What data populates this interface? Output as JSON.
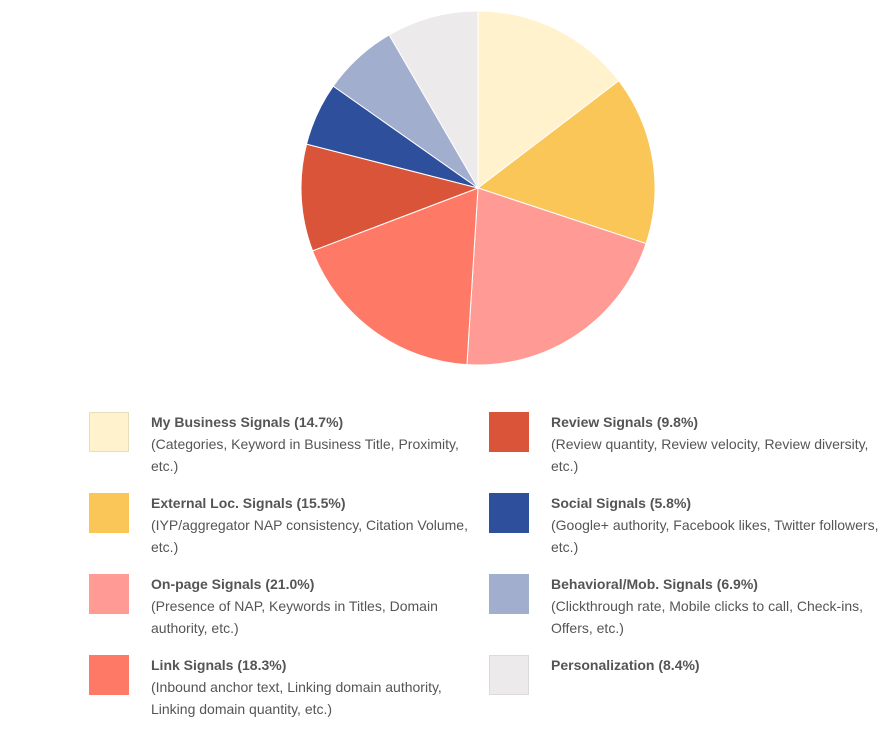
{
  "chart_data": {
    "type": "pie",
    "start_angle_deg": 0,
    "direction": "clockwise",
    "slices": [
      {
        "label": "My Business Signals (14.7%)",
        "value": 14.7,
        "color": "#FFF2CC",
        "description": "(Categories, Keyword in Business Title, Proximity, etc.)"
      },
      {
        "label": "External Loc. Signals (15.5%)",
        "value": 15.5,
        "color": "#FBC658",
        "description": "(IYP/aggregator NAP consistency, Citation Volume, etc.)"
      },
      {
        "label": "On-page Signals (21.0%)",
        "value": 21.0,
        "color": "#FF9A94",
        "description": "(Presence of NAP, Keywords in Titles, Domain authority, etc.)"
      },
      {
        "label": "Link Signals (18.3%)",
        "value": 18.3,
        "color": "#FF7A66",
        "description": "(Inbound anchor text, Linking domain authority, Linking domain quantity, etc.)"
      },
      {
        "label": "Review Signals (9.8%)",
        "value": 9.8,
        "color": "#D95438",
        "description": "(Review quantity, Review velocity, Review diversity, etc.)"
      },
      {
        "label": "Social Signals (5.8%)",
        "value": 5.8,
        "color": "#2E4F9C",
        "description": "(Google+ authority, Facebook likes, Twitter followers, etc.)"
      },
      {
        "label": "Behavioral/Mob. Signals (6.9%)",
        "value": 6.9,
        "color": "#A2AECE",
        "description": "(Clickthrough rate, Mobile clicks to call, Check-ins, Offers, etc.)"
      },
      {
        "label": "Personalization (8.4%)",
        "value": 8.4,
        "color": "#ECEAEA",
        "description": ""
      }
    ],
    "legend_placement": "bottom"
  }
}
